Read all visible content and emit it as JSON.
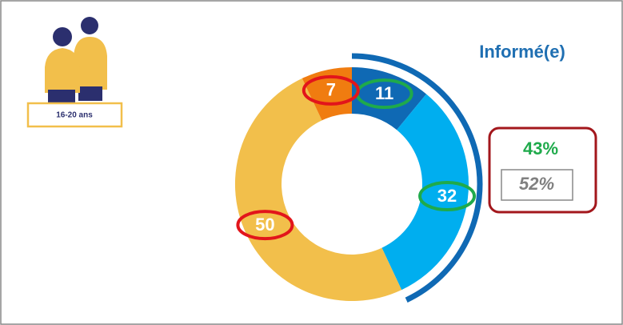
{
  "chart_data": {
    "type": "pie",
    "title": "Informé(e)",
    "age_group": "16-20 ans",
    "categories": [
      null,
      null,
      null,
      null
    ],
    "values": [
      11,
      32,
      50,
      7
    ],
    "colors": [
      "#0f69b4",
      "#00aeef",
      "#f2bf4b",
      "#f07c10"
    ],
    "outline_colors": [
      "#1faa4b",
      "#1faa4b",
      "#e2151b",
      "#e2151b"
    ],
    "annotations": {
      "informed": "43%",
      "reference": "52%"
    }
  }
}
